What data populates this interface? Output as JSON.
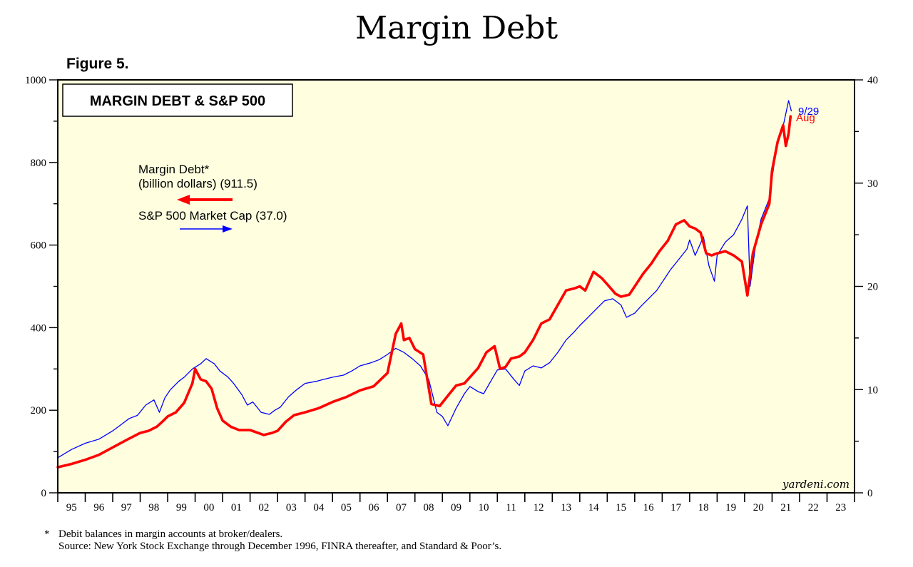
{
  "page": {
    "title": "Margin Debt",
    "figure_label": "Figure 5.",
    "footnote_marker": "*",
    "footnote_text": "Debit balances in margin accounts at broker/dealers.",
    "source_text": "Source: New York Stock Exchange through December 1996, FINRA thereafter, and Standard & Poor’s."
  },
  "chart_data": {
    "type": "line",
    "title": "MARGIN DEBT & S&P 500",
    "watermark": "yardeni.com",
    "background_color": "#ffffe0",
    "xlim": [
      1995,
      2024
    ],
    "x_tick_labels": [
      "95",
      "96",
      "97",
      "98",
      "99",
      "00",
      "01",
      "02",
      "03",
      "04",
      "05",
      "06",
      "07",
      "08",
      "09",
      "10",
      "11",
      "12",
      "13",
      "14",
      "15",
      "16",
      "17",
      "18",
      "19",
      "20",
      "21",
      "22",
      "23"
    ],
    "y_left": {
      "lim": [
        0,
        1000
      ],
      "ticks": [
        0,
        200,
        400,
        600,
        800,
        1000
      ],
      "tick_labels": [
        "0",
        "200",
        "400",
        "600",
        "800",
        "1000"
      ]
    },
    "y_right": {
      "lim": [
        0,
        40
      ],
      "ticks": [
        0,
        10,
        20,
        30,
        40
      ],
      "tick_labels": [
        "0",
        "10",
        "20",
        "30",
        "40"
      ]
    },
    "legend": [
      {
        "line1": "Margin Debt*",
        "line2": "(billion dollars) (911.5)",
        "color": "#ff0000",
        "arrow": "left"
      },
      {
        "line1": "S&P 500 Market Cap (37.0)",
        "color": "#0000ff",
        "arrow": "right"
      }
    ],
    "series": [
      {
        "name": "Margin Debt*",
        "axis": "left",
        "color": "#ff0000",
        "end_label": "Aug",
        "x": [
          1995.0,
          1995.5,
          1996.0,
          1996.5,
          1997.0,
          1997.5,
          1998.0,
          1998.3,
          1998.6,
          1998.8,
          1999.0,
          1999.3,
          1999.6,
          1999.9,
          2000.0,
          2000.2,
          2000.4,
          2000.6,
          2000.8,
          2001.0,
          2001.3,
          2001.6,
          2002.0,
          2002.5,
          2002.8,
          2003.0,
          2003.3,
          2003.6,
          2004.0,
          2004.5,
          2005.0,
          2005.5,
          2006.0,
          2006.5,
          2007.0,
          2007.3,
          2007.5,
          2007.6,
          2007.8,
          2008.0,
          2008.3,
          2008.6,
          2008.9,
          2009.2,
          2009.5,
          2009.8,
          2010.0,
          2010.3,
          2010.6,
          2010.9,
          2011.1,
          2011.3,
          2011.5,
          2011.8,
          2012.0,
          2012.3,
          2012.6,
          2012.9,
          2013.2,
          2013.5,
          2013.8,
          2014.0,
          2014.2,
          2014.5,
          2014.8,
          2015.0,
          2015.3,
          2015.5,
          2015.8,
          2016.0,
          2016.3,
          2016.6,
          2016.9,
          2017.2,
          2017.5,
          2017.8,
          2018.0,
          2018.2,
          2018.4,
          2018.6,
          2018.8,
          2019.0,
          2019.3,
          2019.6,
          2019.9,
          2020.1,
          2020.3,
          2020.6,
          2020.9,
          2021.0,
          2021.2,
          2021.4,
          2021.5,
          2021.6,
          2021.67
        ],
        "values": [
          62,
          70,
          80,
          92,
          110,
          128,
          145,
          150,
          160,
          172,
          185,
          195,
          218,
          265,
          300,
          275,
          270,
          252,
          205,
          175,
          160,
          152,
          152,
          140,
          145,
          150,
          172,
          188,
          195,
          205,
          220,
          232,
          248,
          258,
          290,
          385,
          410,
          370,
          375,
          348,
          335,
          215,
          210,
          235,
          260,
          265,
          280,
          302,
          340,
          355,
          300,
          305,
          325,
          330,
          340,
          370,
          410,
          420,
          455,
          490,
          495,
          500,
          490,
          535,
          520,
          505,
          482,
          475,
          480,
          500,
          530,
          555,
          585,
          610,
          650,
          660,
          645,
          640,
          630,
          580,
          575,
          580,
          585,
          575,
          560,
          478,
          580,
          650,
          700,
          780,
          850,
          890,
          840,
          870,
          911.5
        ]
      },
      {
        "name": "S&P 500 Market Cap",
        "axis": "right",
        "color": "#0000ff",
        "end_label": "9/29",
        "x": [
          1995.0,
          1995.5,
          1996.0,
          1996.5,
          1997.0,
          1997.3,
          1997.6,
          1997.9,
          1998.2,
          1998.5,
          1998.7,
          1998.9,
          1999.1,
          1999.4,
          1999.6,
          1999.9,
          2000.2,
          2000.4,
          2000.7,
          2000.9,
          2001.2,
          2001.4,
          2001.7,
          2001.9,
          2002.1,
          2002.4,
          2002.7,
          2002.9,
          2003.1,
          2003.4,
          2003.7,
          2004.0,
          2004.4,
          2004.7,
          2005.0,
          2005.4,
          2005.7,
          2006.0,
          2006.4,
          2006.7,
          2007.0,
          2007.3,
          2007.6,
          2007.9,
          2008.2,
          2008.5,
          2008.8,
          2009.0,
          2009.2,
          2009.5,
          2009.8,
          2010.0,
          2010.3,
          2010.5,
          2010.8,
          2011.0,
          2011.3,
          2011.6,
          2011.8,
          2012.0,
          2012.3,
          2012.6,
          2012.9,
          2013.2,
          2013.5,
          2013.8,
          2014.0,
          2014.3,
          2014.6,
          2014.9,
          2015.2,
          2015.5,
          2015.7,
          2016.0,
          2016.2,
          2016.5,
          2016.8,
          2017.0,
          2017.3,
          2017.6,
          2017.9,
          2018.0,
          2018.2,
          2018.5,
          2018.7,
          2018.9,
          2019.0,
          2019.3,
          2019.6,
          2019.9,
          2020.1,
          2020.2,
          2020.4,
          2020.6,
          2020.9,
          2021.0,
          2021.2,
          2021.4,
          2021.6,
          2021.7
        ],
        "values": [
          3.4,
          4.2,
          4.8,
          5.2,
          6.0,
          6.6,
          7.2,
          7.5,
          8.5,
          9.0,
          7.8,
          9.2,
          10.0,
          10.8,
          11.2,
          12.0,
          12.5,
          13.0,
          12.5,
          11.8,
          11.2,
          10.6,
          9.5,
          8.5,
          8.8,
          7.8,
          7.6,
          8.0,
          8.3,
          9.3,
          10.0,
          10.6,
          10.8,
          11.0,
          11.2,
          11.4,
          11.8,
          12.3,
          12.6,
          12.9,
          13.4,
          14.0,
          13.6,
          13.0,
          12.3,
          11.0,
          7.8,
          7.4,
          6.5,
          8.2,
          9.6,
          10.3,
          9.8,
          9.6,
          11.0,
          11.9,
          12.0,
          11.0,
          10.4,
          11.8,
          12.3,
          12.1,
          12.6,
          13.6,
          14.8,
          15.6,
          16.2,
          17.0,
          17.8,
          18.6,
          18.8,
          18.2,
          17.0,
          17.4,
          18.0,
          18.8,
          19.6,
          20.4,
          21.6,
          22.6,
          23.6,
          24.5,
          23.0,
          24.8,
          22.0,
          20.5,
          23.0,
          24.3,
          25.0,
          26.5,
          27.8,
          20.0,
          24.0,
          26.5,
          28.5,
          30.5,
          34.0,
          35.5,
          38.0,
          37.0
        ]
      }
    ]
  }
}
